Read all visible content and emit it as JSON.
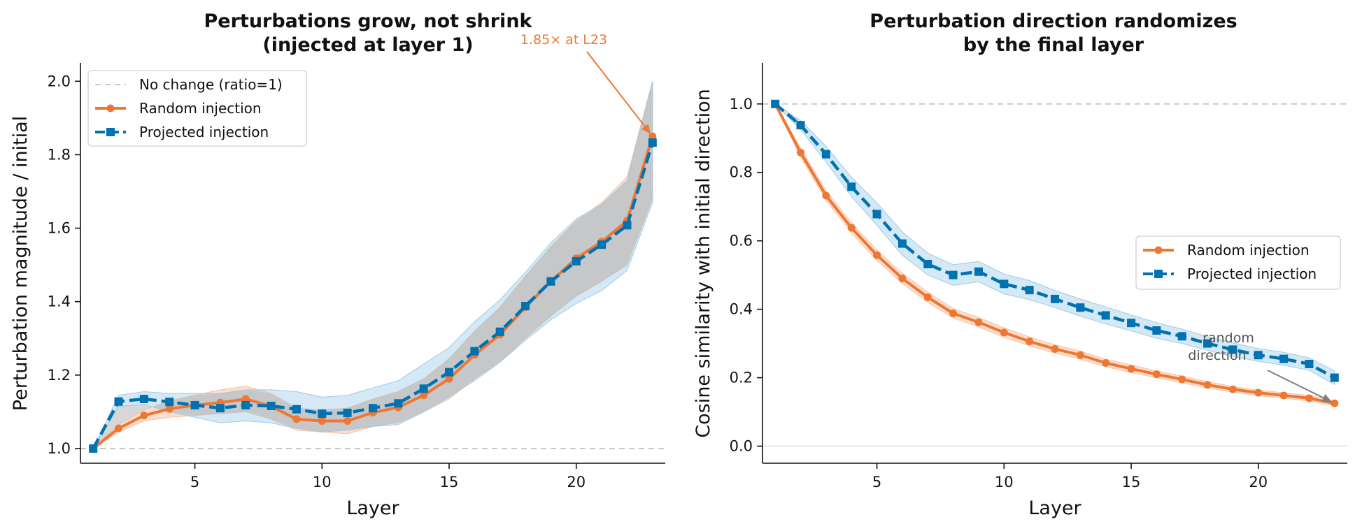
{
  "colors": {
    "random": "#ee7733",
    "projected": "#0072b2",
    "band_random": "#f6c3a4",
    "band_projected": "#9fcbe8",
    "band_overlap": "#bdbdbd",
    "reference": "#c7c7c7",
    "annotation_gray": "#808080"
  },
  "chart_data": [
    {
      "type": "line",
      "title_line1": "Perturbations grow, not shrink",
      "title_line2": "(injected at layer 1)",
      "xlabel": "Layer",
      "ylabel": "Perturbation magnitude / initial",
      "xlim": [
        0.5,
        23.5
      ],
      "ylim": [
        0.96,
        2.05
      ],
      "xticks": [
        5,
        10,
        15,
        20
      ],
      "yticks": [
        1.0,
        1.2,
        1.4,
        1.6,
        1.8,
        2.0
      ],
      "ytick_labels": [
        "1.0",
        "1.2",
        "1.4",
        "1.6",
        "1.8",
        "2.0"
      ],
      "reference_y": 1.0,
      "grid": false,
      "legend_position": "upper-left",
      "legend": {
        "reference": "No change (ratio=1)",
        "random": "Random injection",
        "projected": "Projected injection"
      },
      "annotation": {
        "text": "1.85× at L23",
        "point_x": 23,
        "point_y": 1.85
      },
      "x": [
        1,
        2,
        3,
        4,
        5,
        6,
        7,
        8,
        9,
        10,
        11,
        12,
        13,
        14,
        15,
        16,
        17,
        18,
        19,
        20,
        21,
        22,
        23
      ],
      "series": [
        {
          "key": "random",
          "name": "Random injection",
          "values": [
            1.0,
            1.055,
            1.09,
            1.108,
            1.118,
            1.125,
            1.135,
            1.115,
            1.08,
            1.075,
            1.075,
            1.098,
            1.112,
            1.145,
            1.19,
            1.255,
            1.31,
            1.385,
            1.455,
            1.518,
            1.563,
            1.62,
            1.85
          ],
          "band_lower": [
            1.0,
            1.045,
            1.075,
            1.085,
            1.09,
            1.095,
            1.1,
            1.08,
            1.05,
            1.045,
            1.04,
            1.06,
            1.07,
            1.1,
            1.135,
            1.19,
            1.235,
            1.3,
            1.36,
            1.415,
            1.455,
            1.5,
            1.68
          ],
          "band_upper": [
            1.0,
            1.065,
            1.105,
            1.13,
            1.145,
            1.16,
            1.17,
            1.15,
            1.11,
            1.105,
            1.11,
            1.135,
            1.155,
            1.19,
            1.245,
            1.32,
            1.385,
            1.47,
            1.55,
            1.62,
            1.67,
            1.74,
            2.0
          ]
        },
        {
          "key": "projected",
          "name": "Projected injection",
          "values": [
            1.0,
            1.128,
            1.135,
            1.127,
            1.118,
            1.11,
            1.118,
            1.116,
            1.107,
            1.095,
            1.097,
            1.11,
            1.123,
            1.163,
            1.208,
            1.265,
            1.318,
            1.388,
            1.455,
            1.51,
            1.555,
            1.608,
            1.833
          ],
          "band_lower": [
            1.0,
            1.115,
            1.12,
            1.1,
            1.085,
            1.07,
            1.075,
            1.07,
            1.055,
            1.045,
            1.05,
            1.06,
            1.065,
            1.1,
            1.14,
            1.185,
            1.235,
            1.295,
            1.35,
            1.395,
            1.43,
            1.485,
            1.67
          ],
          "band_upper": [
            1.0,
            1.145,
            1.155,
            1.15,
            1.15,
            1.15,
            1.16,
            1.16,
            1.155,
            1.14,
            1.145,
            1.165,
            1.185,
            1.23,
            1.275,
            1.345,
            1.405,
            1.48,
            1.56,
            1.625,
            1.665,
            1.73,
            2.0
          ]
        }
      ]
    },
    {
      "type": "line",
      "title_line1": "Perturbation direction randomizes",
      "title_line2": "by the final layer",
      "xlabel": "Layer",
      "ylabel": "Cosine similarity with initial direction",
      "xlim": [
        0.5,
        23.5
      ],
      "ylim": [
        -0.05,
        1.12
      ],
      "xticks": [
        5,
        10,
        15,
        20
      ],
      "yticks": [
        0.0,
        0.2,
        0.4,
        0.6,
        0.8,
        1.0
      ],
      "ytick_labels": [
        "0.0",
        "0.2",
        "0.4",
        "0.6",
        "0.8",
        "1.0"
      ],
      "reference_y": 1.0,
      "zero_line": 0.0,
      "grid": false,
      "legend_position": "center-right",
      "legend": {
        "random": "Random injection",
        "projected": "Projected injection"
      },
      "annotation": {
        "text_line1": "random",
        "text_line2": "direction",
        "point_x": 23,
        "point_y": 0.125
      },
      "x": [
        1,
        2,
        3,
        4,
        5,
        6,
        7,
        8,
        9,
        10,
        11,
        12,
        13,
        14,
        15,
        16,
        17,
        18,
        19,
        20,
        21,
        22,
        23
      ],
      "series": [
        {
          "key": "random",
          "name": "Random injection",
          "values": [
            1.0,
            0.858,
            0.732,
            0.638,
            0.558,
            0.49,
            0.435,
            0.388,
            0.362,
            0.332,
            0.306,
            0.284,
            0.266,
            0.243,
            0.226,
            0.21,
            0.195,
            0.179,
            0.166,
            0.156,
            0.148,
            0.14,
            0.125
          ],
          "band_lower": [
            1.0,
            0.845,
            0.718,
            0.623,
            0.543,
            0.475,
            0.42,
            0.374,
            0.348,
            0.318,
            0.293,
            0.272,
            0.254,
            0.232,
            0.215,
            0.2,
            0.185,
            0.17,
            0.158,
            0.148,
            0.14,
            0.132,
            0.118
          ],
          "band_upper": [
            1.0,
            0.871,
            0.746,
            0.653,
            0.573,
            0.505,
            0.45,
            0.402,
            0.376,
            0.346,
            0.319,
            0.296,
            0.278,
            0.254,
            0.237,
            0.22,
            0.205,
            0.188,
            0.174,
            0.164,
            0.156,
            0.148,
            0.132
          ]
        },
        {
          "key": "projected",
          "name": "Projected injection",
          "values": [
            1.0,
            0.938,
            0.853,
            0.758,
            0.678,
            0.592,
            0.532,
            0.5,
            0.51,
            0.474,
            0.456,
            0.43,
            0.405,
            0.382,
            0.36,
            0.338,
            0.321,
            0.3,
            0.282,
            0.266,
            0.255,
            0.24,
            0.2
          ],
          "band_lower": [
            1.0,
            0.925,
            0.83,
            0.73,
            0.645,
            0.558,
            0.5,
            0.47,
            0.48,
            0.445,
            0.428,
            0.405,
            0.38,
            0.357,
            0.337,
            0.315,
            0.3,
            0.28,
            0.262,
            0.248,
            0.236,
            0.222,
            0.18
          ],
          "band_upper": [
            1.0,
            0.952,
            0.876,
            0.786,
            0.711,
            0.626,
            0.564,
            0.53,
            0.54,
            0.503,
            0.484,
            0.455,
            0.43,
            0.407,
            0.383,
            0.361,
            0.342,
            0.32,
            0.302,
            0.285,
            0.274,
            0.258,
            0.22
          ]
        }
      ]
    }
  ]
}
